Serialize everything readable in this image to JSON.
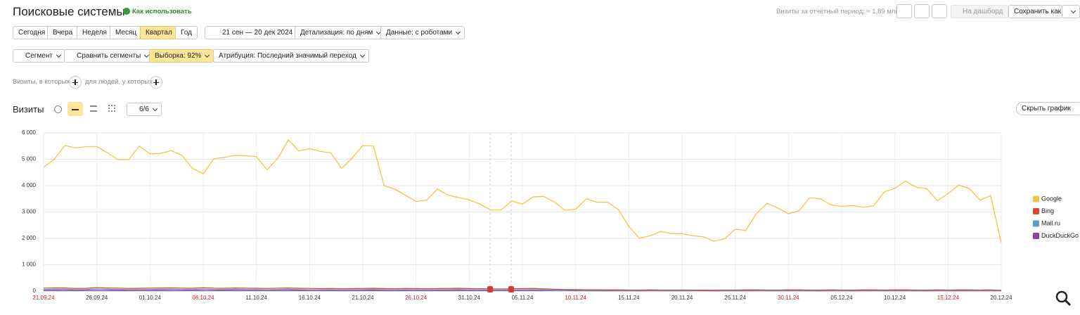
{
  "header": {
    "title": "Поисковые системы",
    "help_link": "Как использовать",
    "summary": "Визиты за отчётный период: ≈ 1,89 млн",
    "dashboard_button": "На дашборд",
    "save_button": "Сохранить как"
  },
  "period_buttons": [
    "Сегодня",
    "Вчера",
    "Неделя",
    "Месяц",
    "Квартал",
    "Год"
  ],
  "date_range": "21 сен — 20 дек 2024",
  "detail": "Детализация: по дням",
  "data_filter": "Данные: с роботами",
  "segment_buttons": {
    "segment": "Сегмент",
    "compare": "Сравнить сегменты",
    "sample": "Выборка: 92%",
    "attribution": "Атрибуция: Последний значимый переход"
  },
  "filters": {
    "visits": "Визиты, в которых",
    "people": "для людей, у которых"
  },
  "chart_header": {
    "title": "Визиты",
    "series_count": "6/6",
    "hide_button": "Скрыть график"
  },
  "chart_data": {
    "type": "line",
    "categories": [
      "21.09.24",
      null,
      null,
      null,
      null,
      "26.09.24",
      null,
      null,
      null,
      null,
      "01.10.24",
      null,
      null,
      null,
      null,
      "06.10.24",
      null,
      null,
      null,
      null,
      "11.10.24",
      null,
      null,
      null,
      null,
      "16.10.24",
      null,
      null,
      null,
      null,
      "21.10.24",
      null,
      null,
      null,
      null,
      "26.10.24",
      null,
      null,
      null,
      null,
      "31.10.24",
      null,
      null,
      null,
      null,
      "05.11.24",
      null,
      null,
      null,
      null,
      "10.11.24",
      null,
      null,
      null,
      null,
      "15.11.24",
      null,
      null,
      null,
      null,
      "20.11.24",
      null,
      null,
      null,
      null,
      "25.11.24",
      null,
      null,
      null,
      null,
      "30.11.24",
      null,
      null,
      null,
      null,
      "05.12.24",
      null,
      null,
      null,
      null,
      "10.12.24",
      null,
      null,
      null,
      null,
      "15.12.24",
      null,
      null,
      null,
      null,
      "20.12.24"
    ],
    "series": [
      {
        "name": "Google",
        "color": "#f4c542",
        "values": [
          4700,
          5000,
          5520,
          5430,
          5480,
          5480,
          5250,
          4980,
          4990,
          5500,
          5200,
          5220,
          5330,
          5150,
          4650,
          4450,
          5020,
          5070,
          5150,
          5130,
          5100,
          4600,
          5030,
          5730,
          5320,
          5400,
          5300,
          5240,
          4650,
          5050,
          5520,
          5500,
          4000,
          3870,
          3640,
          3400,
          3450,
          3870,
          3640,
          3550,
          3460,
          3300,
          3080,
          3080,
          3420,
          3300,
          3570,
          3590,
          3380,
          3070,
          3100,
          3500,
          3370,
          3370,
          3100,
          2450,
          2000,
          2100,
          2260,
          2180,
          2180,
          2100,
          2060,
          1890,
          1980,
          2350,
          2300,
          2950,
          3330,
          3150,
          2930,
          3050,
          3540,
          3500,
          3270,
          3210,
          3250,
          3180,
          3230,
          3760,
          3900,
          4170,
          3940,
          3880,
          3430,
          3700,
          4020,
          3890,
          3450,
          3620,
          1830
        ]
      },
      {
        "name": "Bing",
        "color": "#e0462f",
        "values": [
          110,
          120,
          115,
          100,
          105,
          130,
          115,
          110,
          100,
          105,
          110,
          115,
          120,
          110,
          105,
          125,
          110,
          105,
          115,
          110,
          105,
          100,
          110,
          115,
          105,
          100,
          95,
          100,
          90,
          95,
          100,
          105,
          95,
          90,
          100,
          95,
          90,
          95,
          100,
          105,
          95,
          90,
          85,
          80,
          90,
          95,
          100,
          85,
          70,
          60,
          55,
          50,
          50,
          45,
          45,
          40,
          40,
          45,
          40,
          40,
          40,
          40,
          35,
          35,
          40,
          40,
          45,
          45,
          40,
          40,
          45,
          45,
          40,
          40,
          45,
          40,
          40,
          45,
          45,
          40,
          45,
          45,
          40,
          40,
          45,
          40,
          45,
          45,
          40,
          45,
          30
        ]
      },
      {
        "name": "Mail.ru",
        "color": "#5b9bd5",
        "values": [
          60,
          70,
          65,
          55,
          60,
          75,
          65,
          60,
          55,
          60,
          60,
          65,
          70,
          60,
          55,
          70,
          60,
          55,
          65,
          60,
          55,
          50,
          60,
          65,
          55,
          50,
          50,
          55,
          45,
          50,
          55,
          60,
          50,
          45,
          55,
          50,
          45,
          50,
          55,
          60,
          50,
          45,
          40,
          40,
          45,
          50,
          55,
          45,
          35,
          30,
          30,
          25,
          25,
          25,
          25,
          20,
          20,
          25,
          20,
          20,
          20,
          20,
          20,
          20,
          20,
          20,
          25,
          25,
          20,
          20,
          25,
          25,
          20,
          20,
          25,
          20,
          20,
          25,
          25,
          20,
          25,
          25,
          20,
          20,
          25,
          20,
          25,
          25,
          20,
          25,
          15
        ]
      },
      {
        "name": "DuckDuckGo",
        "color": "#8e3fa0",
        "values": [
          20,
          25,
          20,
          20,
          25,
          20,
          20,
          25,
          20,
          20,
          20,
          25,
          20,
          20,
          25,
          20,
          20,
          25,
          20,
          20,
          20,
          25,
          20,
          20,
          25,
          20,
          20,
          25,
          20,
          20,
          20,
          25,
          20,
          20,
          25,
          20,
          20,
          25,
          20,
          20,
          20,
          25,
          20,
          20,
          25,
          20,
          20,
          25,
          20,
          20,
          15,
          15,
          15,
          10,
          15,
          15,
          10,
          15,
          15,
          15,
          15,
          15,
          15,
          10,
          15,
          15,
          10,
          15,
          15,
          15,
          15,
          15,
          15,
          10,
          15,
          15,
          10,
          15,
          15,
          15,
          15,
          15,
          15,
          10,
          15,
          15,
          10,
          15,
          15,
          15,
          10
        ]
      }
    ],
    "ylim": [
      0,
      6000
    ],
    "yticks": [
      0,
      {
        "value": 1000,
        "label": "1 000"
      },
      {
        "value": 2000,
        "label": "2 000"
      },
      {
        "value": 3000,
        "label": "3 000"
      },
      {
        "value": 4000,
        "label": "4 000"
      },
      {
        "value": 5000,
        "label": "5 000"
      },
      {
        "value": 6000,
        "label": "6 000"
      }
    ],
    "grid": true,
    "legend": "right"
  }
}
